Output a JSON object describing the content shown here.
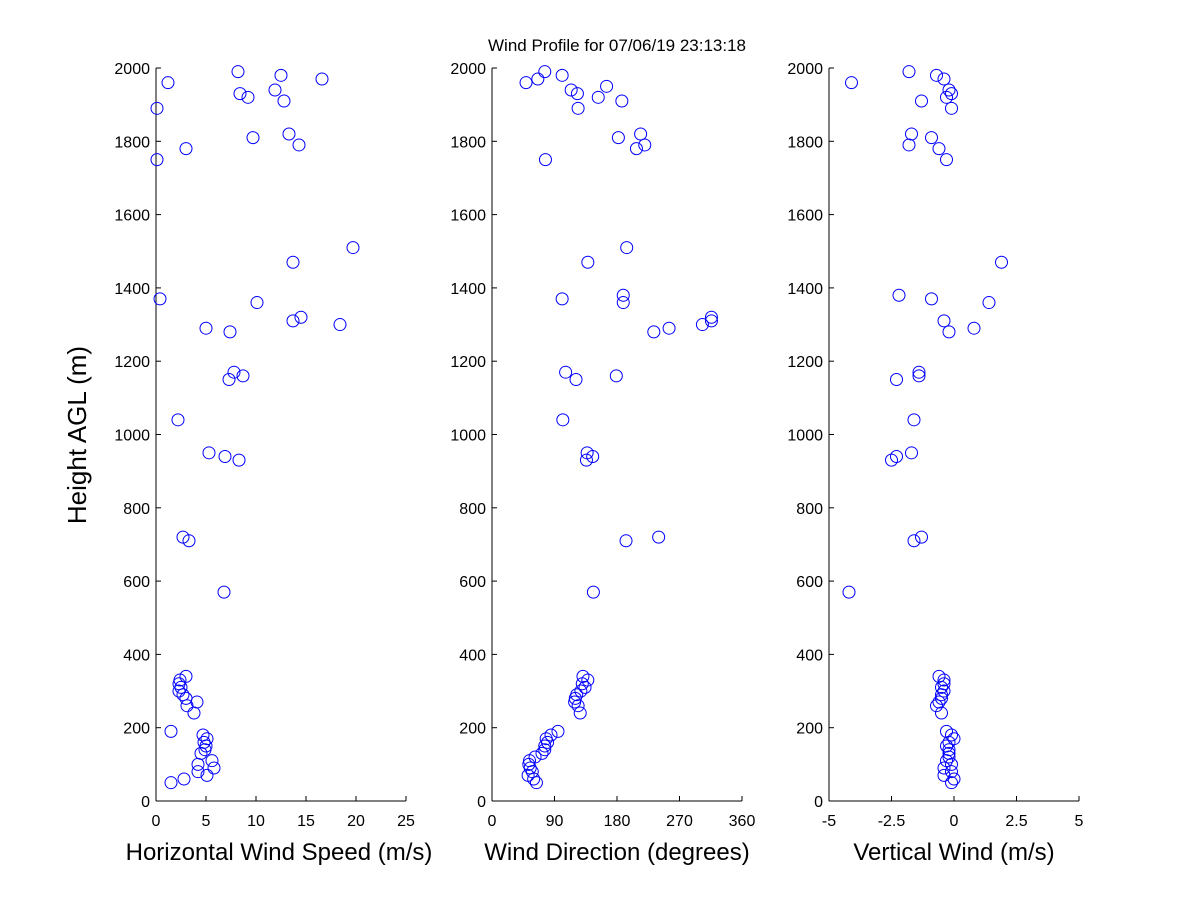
{
  "title": "Wind Profile for  07/06/19 23:13:18",
  "chart_data": [
    {
      "type": "scatter",
      "xlabel": "Horizontal Wind Speed (m/s)",
      "ylabel": "Height AGL (m)",
      "xlim": [
        0,
        25
      ],
      "ylim": [
        0,
        2000
      ],
      "xticks": [
        0,
        5,
        10,
        15,
        20,
        25
      ],
      "xtick_labels": [
        "0",
        "5",
        "10",
        "15",
        "20",
        "25"
      ],
      "yticks": [
        0,
        200,
        400,
        600,
        800,
        1000,
        1200,
        1400,
        1600,
        1800,
        2000
      ],
      "ytick_labels": [
        "0",
        "200",
        "400",
        "600",
        "800",
        "1000",
        "1200",
        "1400",
        "1600",
        "1800",
        "2000"
      ],
      "color": "#0000ff",
      "points": [
        [
          1.5,
          50
        ],
        [
          2.8,
          60
        ],
        [
          5.1,
          70
        ],
        [
          5.8,
          90
        ],
        [
          4.2,
          80
        ],
        [
          4.2,
          100
        ],
        [
          5.6,
          110
        ],
        [
          4.5,
          130
        ],
        [
          4.9,
          140
        ],
        [
          5.0,
          150
        ],
        [
          4.8,
          160
        ],
        [
          5.1,
          170
        ],
        [
          4.7,
          180
        ],
        [
          1.5,
          190
        ],
        [
          3.8,
          240
        ],
        [
          3.1,
          260
        ],
        [
          4.1,
          270
        ],
        [
          3.0,
          280
        ],
        [
          2.7,
          290
        ],
        [
          2.3,
          300
        ],
        [
          2.5,
          310
        ],
        [
          2.3,
          320
        ],
        [
          2.4,
          330
        ],
        [
          3.0,
          340
        ],
        [
          6.8,
          570
        ],
        [
          3.3,
          710
        ],
        [
          2.7,
          720
        ],
        [
          8.3,
          930
        ],
        [
          6.9,
          940
        ],
        [
          5.3,
          950
        ],
        [
          2.2,
          1040
        ],
        [
          7.3,
          1150
        ],
        [
          8.7,
          1160
        ],
        [
          7.8,
          1170
        ],
        [
          7.4,
          1280
        ],
        [
          5.0,
          1290
        ],
        [
          18.4,
          1300
        ],
        [
          13.7,
          1310
        ],
        [
          14.5,
          1320
        ],
        [
          10.1,
          1360
        ],
        [
          0.4,
          1370
        ],
        [
          13.7,
          1470
        ],
        [
          19.7,
          1510
        ],
        [
          0.1,
          1750
        ],
        [
          3.0,
          1780
        ],
        [
          14.3,
          1790
        ],
        [
          9.7,
          1810
        ],
        [
          13.3,
          1820
        ],
        [
          0.1,
          1890
        ],
        [
          12.8,
          1910
        ],
        [
          9.2,
          1920
        ],
        [
          8.4,
          1930
        ],
        [
          11.9,
          1940
        ],
        [
          1.2,
          1960
        ],
        [
          16.6,
          1970
        ],
        [
          12.5,
          1980
        ],
        [
          8.2,
          1990
        ]
      ]
    },
    {
      "type": "scatter",
      "xlabel": "Wind Direction (degrees)",
      "ylabel": "",
      "xlim": [
        0,
        360
      ],
      "ylim": [
        0,
        2000
      ],
      "xticks": [
        0,
        90,
        180,
        270,
        360
      ],
      "xtick_labels": [
        "0",
        "90",
        "180",
        "270",
        "360"
      ],
      "yticks": [
        0,
        200,
        400,
        600,
        800,
        1000,
        1200,
        1400,
        1600,
        1800,
        2000
      ],
      "ytick_labels": [
        "0",
        "200",
        "400",
        "600",
        "800",
        "1000",
        "1200",
        "1400",
        "1600",
        "1800",
        "2000"
      ],
      "color": "#0000ff",
      "points": [
        [
          64,
          50
        ],
        [
          60,
          60
        ],
        [
          52,
          70
        ],
        [
          58,
          80
        ],
        [
          55,
          90
        ],
        [
          53,
          100
        ],
        [
          54,
          110
        ],
        [
          62,
          120
        ],
        [
          72,
          130
        ],
        [
          76,
          140
        ],
        [
          76,
          150
        ],
        [
          80,
          160
        ],
        [
          78,
          170
        ],
        [
          85,
          180
        ],
        [
          95,
          190
        ],
        [
          127,
          240
        ],
        [
          124,
          260
        ],
        [
          119,
          270
        ],
        [
          120,
          280
        ],
        [
          122,
          290
        ],
        [
          128,
          300
        ],
        [
          134,
          310
        ],
        [
          130,
          320
        ],
        [
          138,
          330
        ],
        [
          131,
          340
        ],
        [
          146,
          570
        ],
        [
          193,
          710
        ],
        [
          240,
          720
        ],
        [
          136,
          930
        ],
        [
          145,
          940
        ],
        [
          137,
          950
        ],
        [
          102,
          1040
        ],
        [
          121,
          1150
        ],
        [
          179,
          1160
        ],
        [
          106,
          1170
        ],
        [
          233,
          1280
        ],
        [
          255,
          1290
        ],
        [
          303,
          1300
        ],
        [
          316,
          1310
        ],
        [
          316,
          1320
        ],
        [
          189,
          1360
        ],
        [
          101,
          1370
        ],
        [
          189,
          1380
        ],
        [
          138,
          1470
        ],
        [
          194,
          1510
        ],
        [
          77,
          1750
        ],
        [
          208,
          1780
        ],
        [
          220,
          1790
        ],
        [
          182,
          1810
        ],
        [
          214,
          1820
        ],
        [
          124,
          1890
        ],
        [
          187,
          1910
        ],
        [
          153,
          1920
        ],
        [
          123,
          1930
        ],
        [
          114,
          1940
        ],
        [
          165,
          1950
        ],
        [
          49,
          1960
        ],
        [
          66,
          1970
        ],
        [
          101,
          1980
        ],
        [
          76,
          1990
        ]
      ]
    },
    {
      "type": "scatter",
      "xlabel": "Vertical Wind (m/s)",
      "ylabel": "",
      "xlim": [
        -5,
        5
      ],
      "ylim": [
        0,
        2000
      ],
      "xticks": [
        -5,
        -2.5,
        0,
        2.5,
        5
      ],
      "xtick_labels": [
        "-5",
        "-2.5",
        "0",
        "2.5",
        "5"
      ],
      "yticks": [
        0,
        200,
        400,
        600,
        800,
        1000,
        1200,
        1400,
        1600,
        1800,
        2000
      ],
      "ytick_labels": [
        "0",
        "200",
        "400",
        "600",
        "800",
        "1000",
        "1200",
        "1400",
        "1600",
        "1800",
        "2000"
      ],
      "color": "#0000ff",
      "points": [
        [
          -0.1,
          50
        ],
        [
          0.0,
          60
        ],
        [
          -0.4,
          70
        ],
        [
          -0.1,
          80
        ],
        [
          -0.4,
          90
        ],
        [
          -0.1,
          100
        ],
        [
          -0.3,
          110
        ],
        [
          -0.2,
          120
        ],
        [
          -0.2,
          130
        ],
        [
          -0.2,
          140
        ],
        [
          -0.3,
          150
        ],
        [
          -0.2,
          160
        ],
        [
          0.0,
          170
        ],
        [
          -0.1,
          180
        ],
        [
          -0.3,
          190
        ],
        [
          -0.5,
          240
        ],
        [
          -0.7,
          260
        ],
        [
          -0.6,
          270
        ],
        [
          -0.5,
          280
        ],
        [
          -0.5,
          290
        ],
        [
          -0.4,
          300
        ],
        [
          -0.5,
          310
        ],
        [
          -0.4,
          320
        ],
        [
          -0.4,
          330
        ],
        [
          -0.6,
          340
        ],
        [
          -4.2,
          570
        ],
        [
          -1.6,
          710
        ],
        [
          -1.3,
          720
        ],
        [
          -2.5,
          930
        ],
        [
          -2.3,
          940
        ],
        [
          -1.7,
          950
        ],
        [
          -1.6,
          1040
        ],
        [
          -2.3,
          1150
        ],
        [
          -1.4,
          1160
        ],
        [
          -1.4,
          1170
        ],
        [
          -0.2,
          1280
        ],
        [
          0.8,
          1290
        ],
        [
          -0.4,
          1310
        ],
        [
          -0.9,
          1370
        ],
        [
          1.4,
          1360
        ],
        [
          -2.2,
          1380
        ],
        [
          1.9,
          1470
        ],
        [
          -0.3,
          1750
        ],
        [
          -0.6,
          1780
        ],
        [
          -1.8,
          1790
        ],
        [
          -0.9,
          1810
        ],
        [
          -1.7,
          1820
        ],
        [
          -0.1,
          1890
        ],
        [
          -1.3,
          1910
        ],
        [
          -0.3,
          1920
        ],
        [
          -0.1,
          1930
        ],
        [
          -0.2,
          1940
        ],
        [
          -4.1,
          1960
        ],
        [
          -0.4,
          1970
        ],
        [
          -0.7,
          1980
        ],
        [
          -1.8,
          1990
        ]
      ]
    }
  ]
}
